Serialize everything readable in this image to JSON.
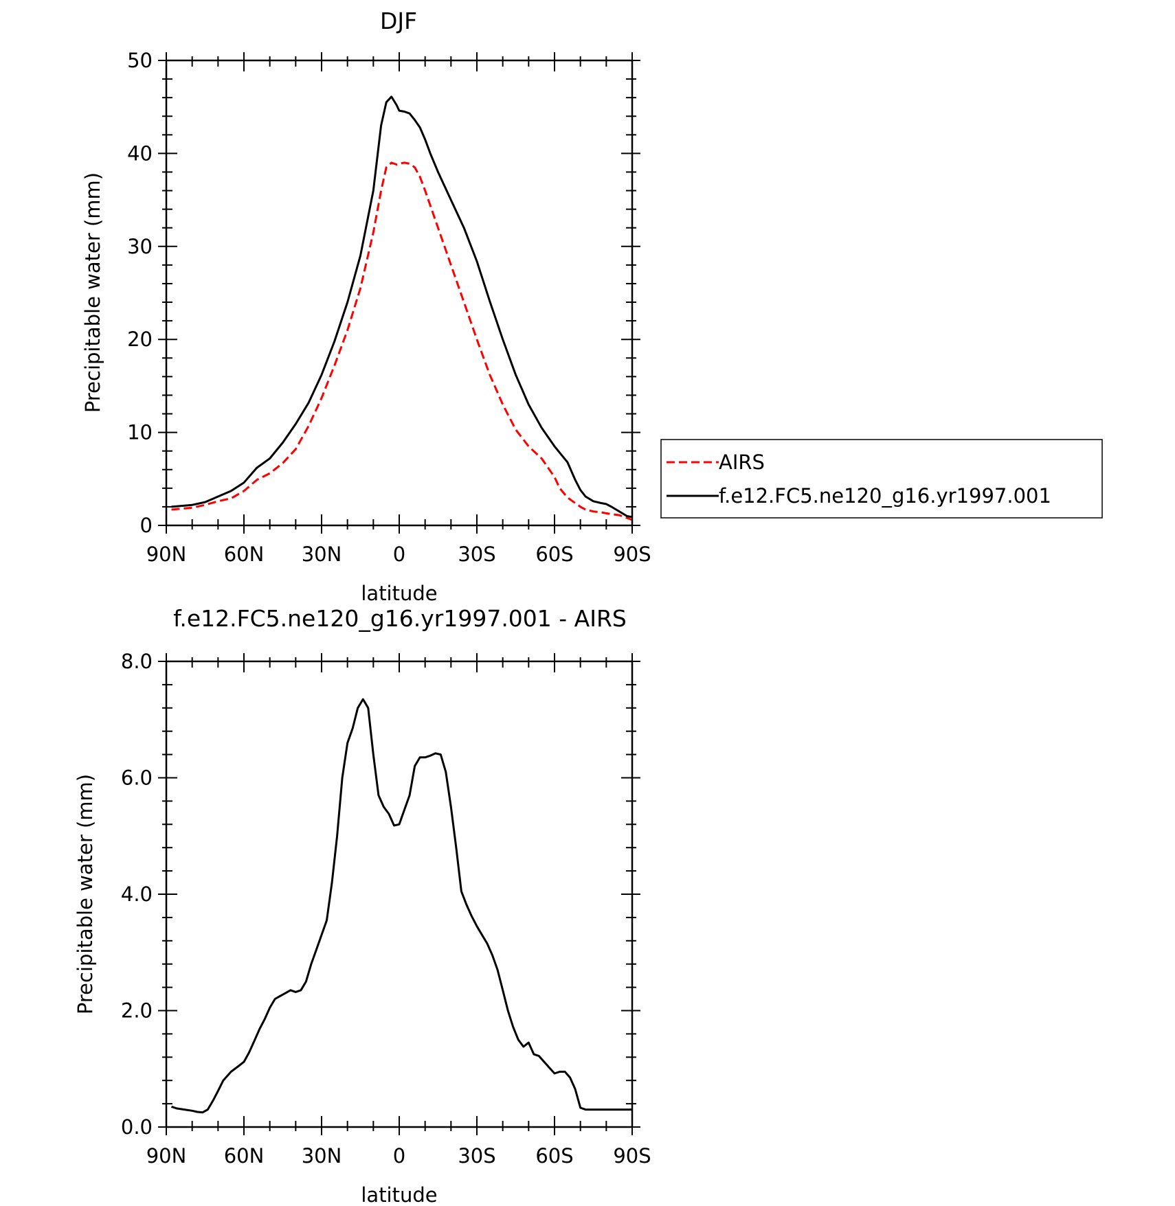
{
  "chart_data": [
    {
      "type": "line",
      "title": "DJF",
      "xlabel": "latitude",
      "ylabel": "Precipitable water (mm)",
      "xlim": [
        -90,
        90
      ],
      "ylim": [
        0,
        50
      ],
      "x_ticks": [
        -90,
        -60,
        -30,
        0,
        30,
        60,
        90
      ],
      "x_tick_labels": [
        "90N",
        "60N",
        "30N",
        "0",
        "30S",
        "60S",
        "90S"
      ],
      "y_ticks": [
        0,
        10,
        20,
        30,
        40,
        50
      ],
      "y_tick_labels": [
        "0",
        "10",
        "20",
        "30",
        "40",
        "50"
      ],
      "y_minor_step": 2,
      "x_minor_step": 10,
      "grid": false,
      "legend": "right",
      "series": [
        {
          "name": "AIRS",
          "color": "#ff0000",
          "dash": true,
          "x": [
            -88,
            -80,
            -75,
            -70,
            -65,
            -60,
            -55,
            -50,
            -45,
            -40,
            -35,
            -30,
            -25,
            -20,
            -15,
            -10,
            -7,
            -5,
            -3,
            -1,
            0,
            2,
            4,
            6,
            8,
            10,
            15,
            20,
            25,
            30,
            35,
            40,
            45,
            50,
            55,
            60,
            62,
            65,
            68,
            70,
            72,
            75,
            78,
            80,
            85,
            88,
            90
          ],
          "y": [
            1.7,
            1.9,
            2.2,
            2.6,
            2.9,
            3.7,
            4.9,
            5.6,
            6.7,
            8.2,
            10.7,
            13.7,
            17.2,
            21,
            25.5,
            31.5,
            36,
            38.5,
            39,
            38.8,
            38.9,
            39,
            38.9,
            38.5,
            37.5,
            36,
            32,
            28,
            24,
            20,
            16.2,
            13,
            10.3,
            8.5,
            7.2,
            5.2,
            4,
            3,
            2.4,
            2,
            1.7,
            1.5,
            1.4,
            1.3,
            1.1,
            0.8,
            0.6
          ]
        },
        {
          "name": "f.e12.FC5.ne120_g16.yr1997.001",
          "color": "#000000",
          "dash": false,
          "x": [
            -88,
            -80,
            -75,
            -70,
            -65,
            -60,
            -55,
            -50,
            -45,
            -40,
            -35,
            -30,
            -25,
            -20,
            -15,
            -10,
            -7,
            -5,
            -3,
            -1,
            0,
            2,
            4,
            6,
            8,
            10,
            12,
            15,
            20,
            25,
            30,
            35,
            40,
            45,
            50,
            55,
            60,
            65,
            68,
            70,
            72,
            75,
            78,
            80,
            82,
            85,
            88,
            90
          ],
          "y": [
            2,
            2.2,
            2.5,
            3.1,
            3.7,
            4.6,
            6.2,
            7.2,
            8.9,
            10.9,
            13.2,
            16.2,
            19.8,
            24,
            29,
            36,
            43,
            45.5,
            46.1,
            45.2,
            44.6,
            44.5,
            44.3,
            43.6,
            42.8,
            41.5,
            40,
            38,
            35,
            32,
            28.4,
            24.1,
            20,
            16.2,
            13,
            10.5,
            8.5,
            6.8,
            4.9,
            3.8,
            3.1,
            2.6,
            2.4,
            2.3,
            2,
            1.5,
            1,
            0.9
          ]
        }
      ]
    },
    {
      "type": "line",
      "title": "f.e12.FC5.ne120_g16.yr1997.001 - AIRS",
      "xlabel": "latitude",
      "ylabel": "Precipitable water (mm)",
      "xlim": [
        -90,
        90
      ],
      "ylim": [
        0,
        8
      ],
      "x_ticks": [
        -90,
        -60,
        -30,
        0,
        30,
        60,
        90
      ],
      "x_tick_labels": [
        "90N",
        "60N",
        "30N",
        "0",
        "30S",
        "60S",
        "90S"
      ],
      "y_ticks": [
        0,
        2,
        4,
        6,
        8
      ],
      "y_tick_labels": [
        "0.0",
        "2.0",
        "4.0",
        "6.0",
        "8.0"
      ],
      "y_minor_step": 0.4,
      "x_minor_step": 10,
      "grid": false,
      "series": [
        {
          "color": "#000000",
          "dash": false,
          "x": [
            -88,
            -86,
            -83,
            -80,
            -78,
            -76,
            -74,
            -72,
            -70,
            -68,
            -65,
            -62,
            -60,
            -58,
            -56,
            -54,
            -52,
            -50,
            -48,
            -46,
            -44,
            -42,
            -40,
            -38,
            -36,
            -34,
            -32,
            -30,
            -28,
            -26,
            -24,
            -22,
            -20,
            -18,
            -16,
            -14,
            -12,
            -10,
            -8,
            -6,
            -4,
            -2,
            0,
            2,
            4,
            6,
            8,
            10,
            12,
            14,
            16,
            18,
            20,
            22,
            24,
            26,
            28,
            30,
            32,
            34,
            36,
            38,
            40,
            42,
            44,
            46,
            48,
            50,
            52,
            54,
            56,
            58,
            60,
            62,
            64,
            66,
            68,
            70,
            72,
            74,
            76,
            78,
            80,
            82,
            84,
            86,
            88,
            90
          ],
          "y": [
            0.35,
            0.32,
            0.3,
            0.28,
            0.26,
            0.25,
            0.3,
            0.45,
            0.62,
            0.8,
            0.95,
            1.05,
            1.12,
            1.28,
            1.48,
            1.68,
            1.85,
            2.05,
            2.2,
            2.25,
            2.3,
            2.35,
            2.32,
            2.35,
            2.5,
            2.8,
            3.05,
            3.3,
            3.55,
            4.2,
            5,
            6,
            6.6,
            6.85,
            7.2,
            7.35,
            7.2,
            6.4,
            5.7,
            5.5,
            5.38,
            5.18,
            5.2,
            5.45,
            5.7,
            6.2,
            6.35,
            6.35,
            6.38,
            6.42,
            6.4,
            6.1,
            5.5,
            4.8,
            4.05,
            3.82,
            3.62,
            3.45,
            3.3,
            3.15,
            2.95,
            2.7,
            2.35,
            2,
            1.72,
            1.5,
            1.38,
            1.45,
            1.25,
            1.22,
            1.12,
            1.02,
            0.92,
            0.95,
            0.95,
            0.85,
            0.65,
            0.33,
            0.3,
            0.3,
            0.3,
            0.3,
            0.3,
            0.3,
            0.3,
            0.3,
            0.3,
            0.3
          ]
        }
      ]
    }
  ]
}
